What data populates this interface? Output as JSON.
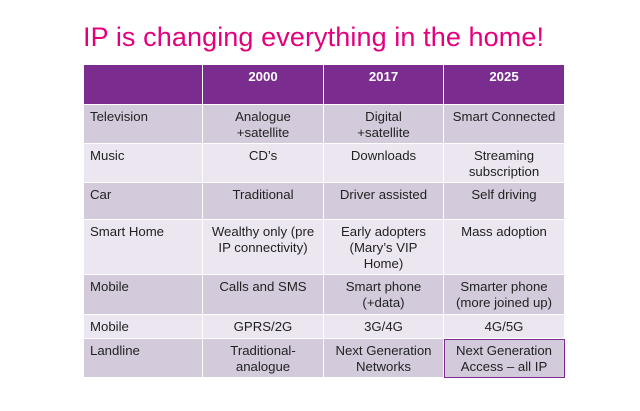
{
  "title": "IP is changing everything in the home!",
  "table": {
    "headers": [
      "",
      "2000",
      "2017",
      "2025"
    ],
    "rows": [
      {
        "label": "Television",
        "cells": [
          "Analogue\n+satellite",
          "Digital\n+satellite",
          "Smart Connected"
        ]
      },
      {
        "label": "Music",
        "cells": [
          "CD’s",
          "Downloads",
          "Streaming\nsubscription"
        ]
      },
      {
        "label": "Car",
        "cells": [
          "Traditional",
          "Driver assisted",
          "Self driving"
        ]
      },
      {
        "label": "Smart Home",
        "cells": [
          "Wealthy only (pre\nIP connectivity)",
          "Early adopters\n(Mary’s VIP\nHome)",
          "Mass adoption"
        ]
      },
      {
        "label": "Mobile",
        "cells": [
          "Calls and SMS",
          "Smart phone\n(+data)",
          "Smarter phone\n(more joined up)"
        ]
      },
      {
        "label": "Mobile",
        "cells": [
          "GPRS/2G",
          "3G/4G",
          "4G/5G"
        ]
      },
      {
        "label": "Landline",
        "cells": [
          "Traditional-\nanalogue",
          "Next Generation\nNetworks",
          "Next Generation\nAccess – all IP"
        ]
      }
    ]
  },
  "colors": {
    "title": "#e4007c",
    "header_bg": "#7a2d8e",
    "row_dark": "#d3cbdb",
    "row_light": "#ebe6ef"
  }
}
